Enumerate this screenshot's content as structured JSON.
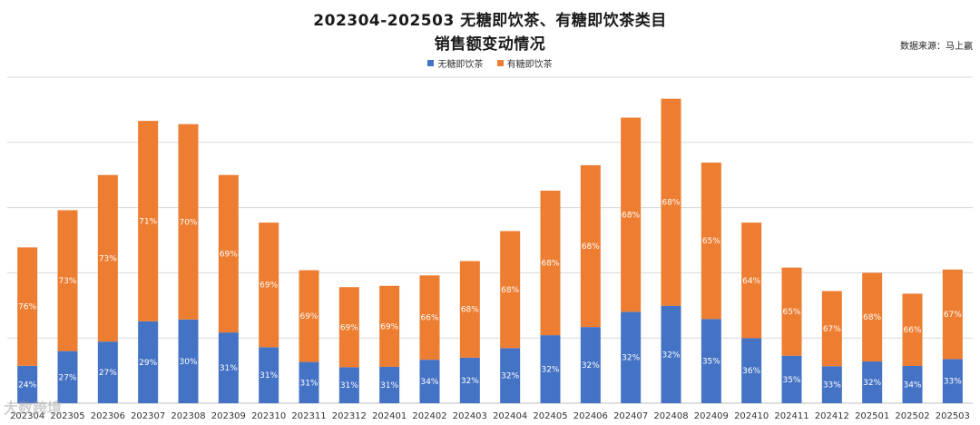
{
  "title_line1": "202304-202503 无糖即饮茶、有糖即饮茶类目",
  "title_line2": "销售额变动情况",
  "source": "数据来源：马上赢",
  "watermark": "大数跨境",
  "colors": {
    "sugar_free": "#4472C4",
    "sugared": "#ED7D31",
    "grid": "#d9d9d9"
  },
  "chart_data": {
    "type": "bar",
    "stacked": true,
    "title": "202304-202503 无糖即饮茶、有糖即饮茶类目 销售额变动情况",
    "categories": [
      "202304",
      "202305",
      "202306",
      "202307",
      "202308",
      "202309",
      "202310",
      "202311",
      "202312",
      "202401",
      "202402",
      "202403",
      "202404",
      "202405",
      "202406",
      "202407",
      "202408",
      "202409",
      "202410",
      "202411",
      "202412",
      "202501",
      "202502",
      "202503"
    ],
    "totals": [
      239,
      296,
      350,
      433,
      428,
      350,
      277,
      204,
      178,
      180,
      196,
      218,
      264,
      326,
      365,
      438,
      467,
      369,
      277,
      208,
      172,
      200,
      168,
      205
    ],
    "series": [
      {
        "name": "无糖即饮茶",
        "percent_labels": [
          "24%",
          "27%",
          "27%",
          "29%",
          "30%",
          "31%",
          "31%",
          "31%",
          "31%",
          "31%",
          "34%",
          "32%",
          "32%",
          "32%",
          "32%",
          "32%",
          "32%",
          "35%",
          "36%",
          "35%",
          "33%",
          "32%",
          "34%",
          "33%"
        ]
      },
      {
        "name": "有糖即饮茶",
        "percent_labels": [
          "76%",
          "73%",
          "73%",
          "71%",
          "70%",
          "69%",
          "69%",
          "69%",
          "69%",
          "69%",
          "66%",
          "68%",
          "68%",
          "68%",
          "68%",
          "68%",
          "68%",
          "65%",
          "64%",
          "65%",
          "67%",
          "68%",
          "66%",
          "67%"
        ]
      }
    ],
    "ylim": [
      0,
      500
    ],
    "grid": true,
    "legend": "top-center"
  }
}
